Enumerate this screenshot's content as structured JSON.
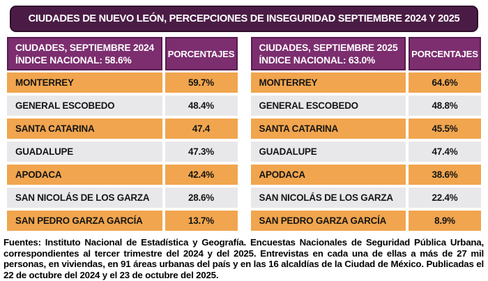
{
  "title": "CIUDADES DE NUEVO LEÓN, PERCEPCIONES DE INSEGURIDAD SEPTIEMBRE 2024 Y 2025",
  "tables": [
    {
      "header_line1": "CIUDADES, SEPTIEMBRE 2024",
      "header_line2": "ÍNDICE NACIONAL: 58.6%",
      "pct_header": "PORCENTAJES",
      "national_index": 58.6,
      "rows": [
        {
          "city": "MONTERREY",
          "value": "59.7%"
        },
        {
          "city": "GENERAL ESCOBEDO",
          "value": "48.4%"
        },
        {
          "city": "SANTA CATARINA",
          "value": "47.4"
        },
        {
          "city": "GUADALUPE",
          "value": "47.3%"
        },
        {
          "city": "APODACA",
          "value": "42.4%"
        },
        {
          "city": "SAN NICOLÁS DE LOS GARZA",
          "value": "28.6%"
        },
        {
          "city": "SAN PEDRO GARZA GARCÍA",
          "value": "13.7%"
        }
      ]
    },
    {
      "header_line1": "CIUDADES, SEPTIEMBRE 2025",
      "header_line2": "ÍNDICE NACIONAL: 63.0%",
      "pct_header": "PORCENTAJES",
      "national_index": 63.0,
      "rows": [
        {
          "city": "MONTERREY",
          "value": "64.6%"
        },
        {
          "city": "GENERAL ESCOBEDO",
          "value": "48.8%"
        },
        {
          "city": "SANTA CATARINA",
          "value": "45.5%"
        },
        {
          "city": "GUADALUPE",
          "value": "47.4%"
        },
        {
          "city": "APODACA",
          "value": "38.6%"
        },
        {
          "city": "SAN NICOLÁS DE LOS GARZA",
          "value": "22.4%"
        },
        {
          "city": "SAN PEDRO GARZA GARCÍA",
          "value": "8.9%"
        }
      ]
    }
  ],
  "footer": "Fuentes: Instituto Nacional de Estadística y Geografía. Encuestas Nacionales de Seguridad Pública Urbana, correspondientes al tercer trimestre del 2024 y del 2025. Entrevistas en cada una de ellas a más de 27 mil personas, en viviendas, en 91 áreas urbanas del país y en las 16 alcaldías de la Ciudad de México. Publicadas el 22 de octubre del 2024 y el 23 de octubre del 2025.",
  "colors": {
    "title_bg": "#4a1c45",
    "title_border": "#2e0d2b",
    "header_bg": "#7c2e6f",
    "header_border": "#581b50",
    "row_orange": "#f1a54e",
    "row_gray": "#e8e8ea",
    "text": "#111111",
    "header_text": "#ffffff"
  },
  "chart_data": [
    {
      "type": "table",
      "title": "CIUDADES, SEPTIEMBRE 2024 — ÍNDICE NACIONAL: 58.6%",
      "columns": [
        "CIUDAD",
        "PORCENTAJES"
      ],
      "rows": [
        [
          "MONTERREY",
          "59.7%"
        ],
        [
          "GENERAL ESCOBEDO",
          "48.4%"
        ],
        [
          "SANTA CATARINA",
          "47.4"
        ],
        [
          "GUADALUPE",
          "47.3%"
        ],
        [
          "APODACA",
          "42.4%"
        ],
        [
          "SAN NICOLÁS DE LOS GARZA",
          "28.6%"
        ],
        [
          "SAN PEDRO GARZA GARCÍA",
          "13.7%"
        ]
      ],
      "values": [
        59.7,
        48.4,
        47.4,
        47.3,
        42.4,
        28.6,
        13.7
      ],
      "national_index": 58.6
    },
    {
      "type": "table",
      "title": "CIUDADES, SEPTIEMBRE 2025 — ÍNDICE NACIONAL: 63.0%",
      "columns": [
        "CIUDAD",
        "PORCENTAJES"
      ],
      "rows": [
        [
          "MONTERREY",
          "64.6%"
        ],
        [
          "GENERAL ESCOBEDO",
          "48.8%"
        ],
        [
          "SANTA CATARINA",
          "45.5%"
        ],
        [
          "GUADALUPE",
          "47.4%"
        ],
        [
          "APODACA",
          "38.6%"
        ],
        [
          "SAN NICOLÁS DE LOS GARZA",
          "22.4%"
        ],
        [
          "SAN PEDRO GARZA GARCÍA",
          "8.9%"
        ]
      ],
      "values": [
        64.6,
        48.8,
        45.5,
        47.4,
        38.6,
        22.4,
        8.9
      ],
      "national_index": 63.0
    }
  ]
}
